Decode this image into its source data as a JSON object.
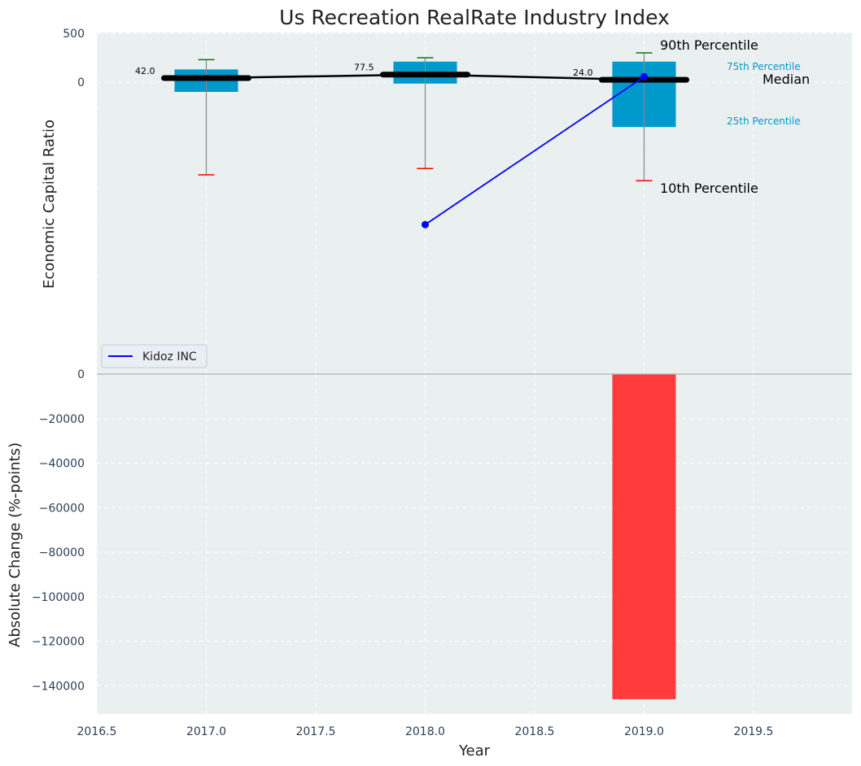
{
  "chart_data": [
    {
      "type": "box",
      "title": "Us Recreation RealRate Industry Index",
      "ylabel": "Economic Capital Ratio",
      "xlim": [
        2016.5,
        2019.95
      ],
      "yticks": [
        {
          "value": 500,
          "label": "500"
        },
        {
          "value": 0,
          "label": "0"
        }
      ],
      "boxes": [
        {
          "x": 2017,
          "p10": -950,
          "p25": -100,
          "median": 42.0,
          "p75": 130,
          "p90": 230,
          "label": "42.0"
        },
        {
          "x": 2018,
          "p10": -885,
          "p25": -15,
          "median": 77.5,
          "p75": 210,
          "p90": 250,
          "label": "77.5"
        },
        {
          "x": 2019,
          "p10": -1010,
          "p25": -460,
          "median": 24.0,
          "p75": 210,
          "p90": 300,
          "label": "24.0"
        }
      ],
      "company_series": {
        "name": "Kidoz INC",
        "x": [
          2018,
          2019
        ],
        "y": [
          -1460,
          55
        ]
      },
      "legend": {
        "position": "lower-left"
      },
      "annotations": {
        "p90": "90th Percentile",
        "p75": "75th Percentile",
        "median": "Median",
        "p25": "25th Percentile",
        "p10": "10th Percentile"
      },
      "grid": true
    },
    {
      "type": "bar",
      "ylabel": "Absolute Change (%-points)",
      "xlabel": "Year",
      "xlim": [
        2016.5,
        2019.95
      ],
      "ylim": [
        -153000,
        0
      ],
      "x": [
        2019
      ],
      "values": [
        -146000
      ],
      "bar_color": "#ff3b3b",
      "xticks": [
        "2016.5",
        "2017.0",
        "2017.5",
        "2018.0",
        "2018.5",
        "2019.0",
        "2019.5"
      ],
      "yticks": [
        "0",
        "−20000",
        "−40000",
        "−60000",
        "−80000",
        "−100000",
        "−120000",
        "−140000"
      ],
      "grid": true
    }
  ],
  "colors": {
    "panel_bg": "#eaeff0",
    "box": "#0099cc",
    "median_line": "#000000",
    "whisker_high": "#008000",
    "whisker_low": "#ff0000",
    "company_line": "#0000ff",
    "tick_text": "#2e4058",
    "label_75_25": "#0099cc"
  }
}
